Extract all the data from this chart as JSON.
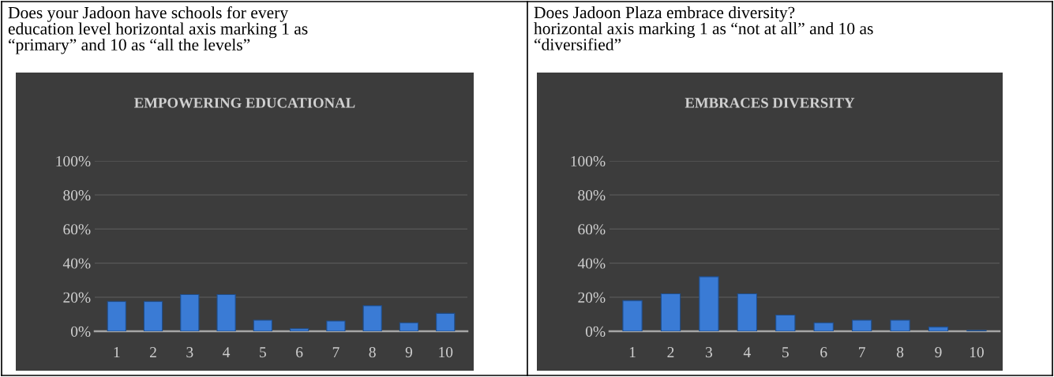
{
  "chart_data": [
    {
      "type": "bar",
      "title": "EMPOWERING EDUCATIONAL",
      "annotations": [
        "Does your Jadoon have schools for every\neducation level horizontal axis marking 1 as\n“primary” and 10 as “all the levels”"
      ],
      "categories": [
        "1",
        "2",
        "3",
        "4",
        "5",
        "6",
        "7",
        "8",
        "9",
        "10"
      ],
      "values": [
        17.5,
        17.5,
        21.5,
        21.5,
        6.5,
        1.5,
        6,
        15,
        5,
        10.5
      ],
      "color": "#3a7bd5",
      "ylim": [
        0,
        100
      ],
      "yticks": [
        {
          "value": 0,
          "label": "0%"
        },
        {
          "value": 20,
          "label": "20%"
        },
        {
          "value": 40,
          "label": "40%"
        },
        {
          "value": 60,
          "label": "60%"
        },
        {
          "value": 80,
          "label": "80%"
        },
        {
          "value": 100,
          "label": "100%"
        }
      ],
      "grid": "y",
      "legend": false
    },
    {
      "type": "bar",
      "title": "EMBRACES DIVERSITY",
      "annotations": [
        "Does Jadoon Plaza embrace diversity?\nhorizontal axis marking 1 as “not at all” and 10 as\n“diversified”"
      ],
      "categories": [
        "1",
        "2",
        "3",
        "4",
        "5",
        "6",
        "7",
        "8",
        "9",
        "10"
      ],
      "values": [
        18,
        22,
        32,
        22,
        9.5,
        5,
        6.5,
        6.5,
        2.5,
        0.5
      ],
      "color": "#3a7bd5",
      "ylim": [
        0,
        100
      ],
      "yticks": [
        {
          "value": 0,
          "label": "0%"
        },
        {
          "value": 20,
          "label": "20%"
        },
        {
          "value": 40,
          "label": "40%"
        },
        {
          "value": 60,
          "label": "60%"
        },
        {
          "value": 80,
          "label": "80%"
        },
        {
          "value": 100,
          "label": "100%"
        }
      ],
      "grid": "y",
      "legend": false
    }
  ]
}
